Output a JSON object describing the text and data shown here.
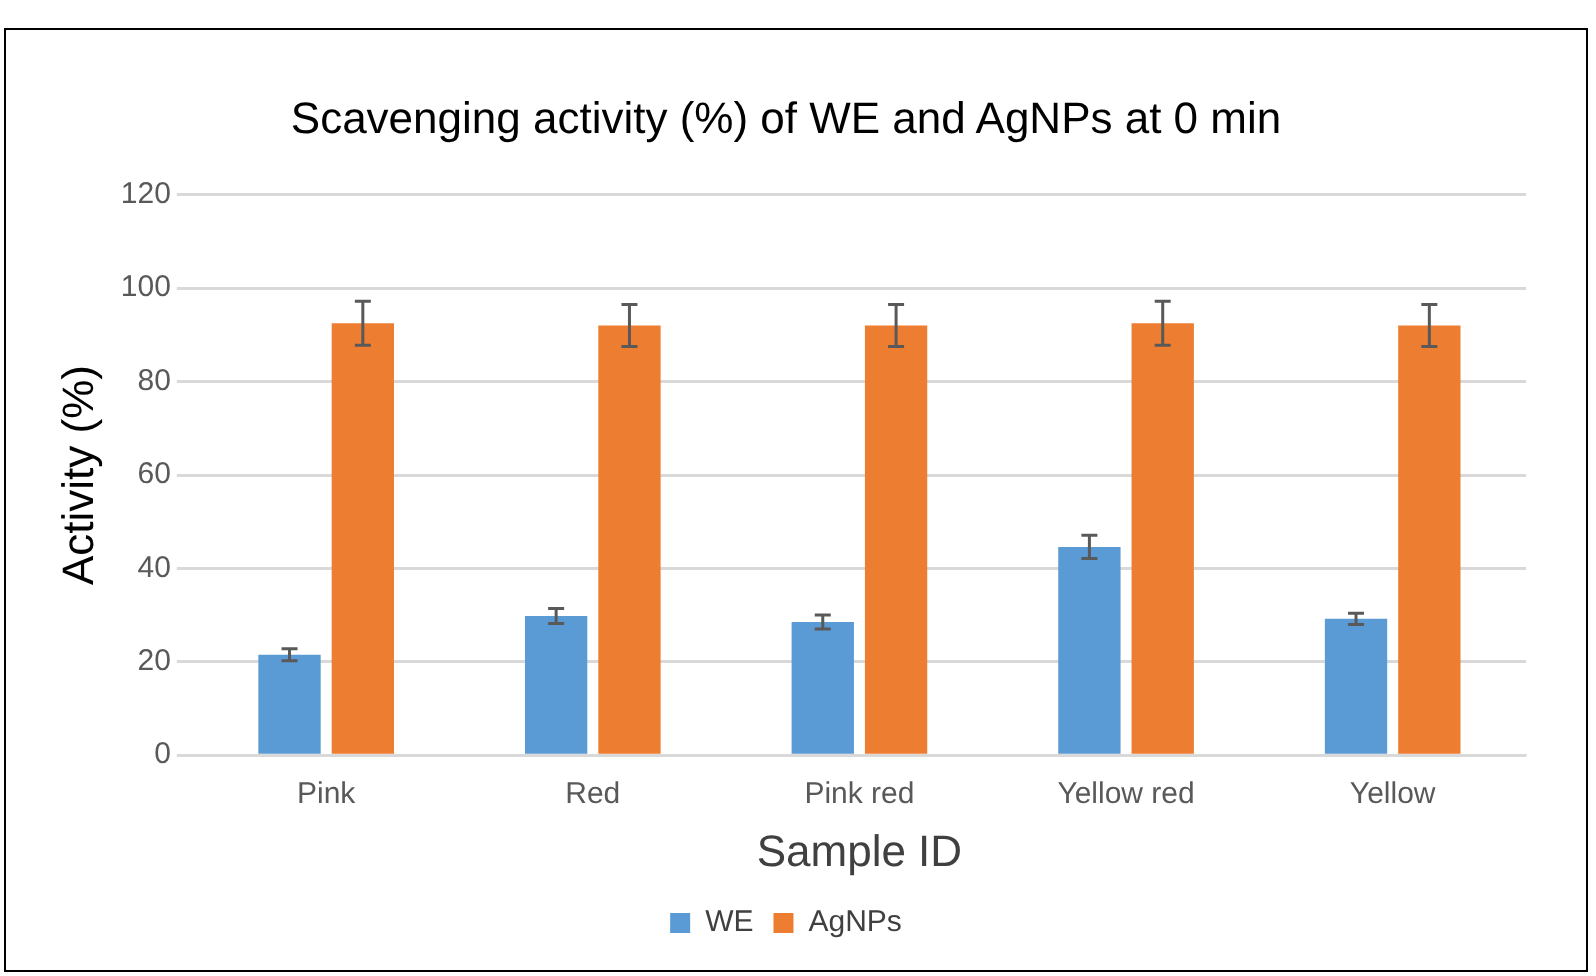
{
  "chart_data": {
    "type": "bar",
    "title": "Scavenging activity (%) of WE and AgNPs at 0 min",
    "xlabel": "Sample ID",
    "ylabel": "Activity (%)",
    "categories": [
      "Pink",
      "Red",
      "Pink red",
      "Yellow red",
      "Yellow"
    ],
    "series": [
      {
        "name": "WE",
        "color": "#5b9bd5",
        "values": [
          21.5,
          29.8,
          28.5,
          44.6,
          29.2
        ],
        "errors": [
          1.3,
          1.6,
          1.5,
          2.5,
          1.2
        ]
      },
      {
        "name": "AgNPs",
        "color": "#ed7d31",
        "values": [
          92.5,
          92,
          92,
          92.5,
          92
        ],
        "errors": [
          4.7,
          4.5,
          4.5,
          4.7,
          4.5
        ]
      }
    ],
    "ylim": [
      0,
      120
    ],
    "yticks": [
      0,
      20,
      40,
      60,
      80,
      100,
      120
    ],
    "grid": "y",
    "legend": "bottom"
  }
}
